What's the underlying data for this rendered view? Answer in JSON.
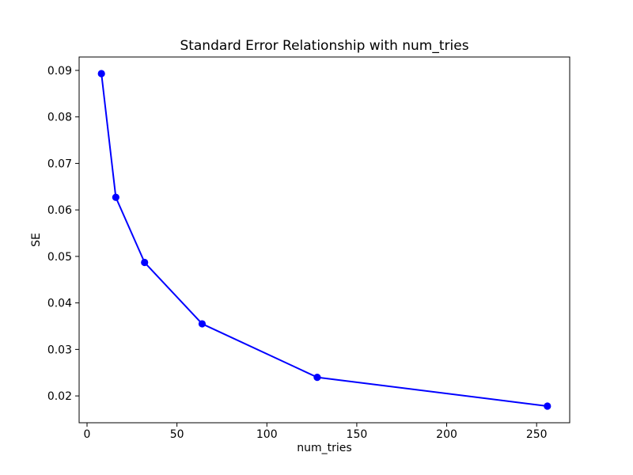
{
  "chart_data": {
    "type": "line",
    "title": "Standard Error Relationship with num_tries",
    "xlabel": "num_tries",
    "ylabel": "SE",
    "x": [
      8,
      16,
      32,
      64,
      128,
      256
    ],
    "y": [
      0.0893,
      0.0627,
      0.0487,
      0.0355,
      0.024,
      0.0178
    ],
    "xlim": [
      -4.4,
      268.4
    ],
    "ylim": [
      0.01423,
      0.09288
    ],
    "xticks": {
      "values": [
        0,
        50,
        100,
        150,
        200,
        250
      ],
      "labels": [
        "0",
        "50",
        "100",
        "150",
        "200",
        "250"
      ]
    },
    "yticks": {
      "values": [
        0.02,
        0.03,
        0.04,
        0.05,
        0.06,
        0.07,
        0.08,
        0.09
      ],
      "labels": [
        "0.02",
        "0.03",
        "0.04",
        "0.05",
        "0.06",
        "0.07",
        "0.08",
        "0.09"
      ]
    },
    "grid": false,
    "legend_position": "none",
    "marker": "circle",
    "colors": {
      "line": "#0000ff",
      "marker": "#0000ff",
      "text": "#000000",
      "spine": "#000000",
      "background": "#ffffff"
    }
  }
}
